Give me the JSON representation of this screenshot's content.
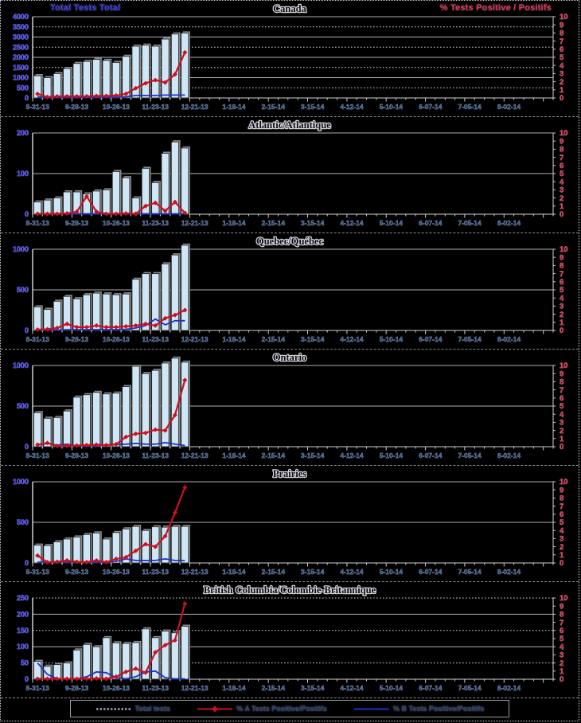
{
  "page": {
    "background": "#000000",
    "border_color": "#cfcfcf"
  },
  "header": {
    "left_axis_title": "Total Tests Total",
    "right_axis_title": "% Tests Positive / Positifs"
  },
  "axis": {
    "x_tick_labels": [
      "8-31-13",
      "9-28-13",
      "10-26-13",
      "11-23-13",
      "12-21-13",
      "1-18-14",
      "2-15-14",
      "3-15-14",
      "4-12-14",
      "5-10-14",
      "6-07-14",
      "7-05-14",
      "8-02-14"
    ],
    "weeks_total": 53,
    "label_every_weeks": 4,
    "right_axis_ticks": [
      0,
      1,
      2,
      3,
      4,
      5,
      6,
      7,
      8,
      9,
      10
    ],
    "right_axis_max": 10
  },
  "colors": {
    "bar_fill": "#cfe6f6",
    "bar_stroke": "#262626",
    "bar_shadow": "#8c8c8c",
    "line_a": "#cc1020",
    "line_b": "#2030cc",
    "grid_solid": "#b0b0b0",
    "grid_dotted": "#d8d8d8",
    "axis_line": "#cfcfcf",
    "left_label": "#3a3af0",
    "right_label": "#e03050",
    "x_label": "#3f5f92",
    "title_fill": "#0d0d20",
    "title_halo": "#d8d8d8",
    "legend_text": "#2a3f77",
    "legend_dash": "#9aa4c0"
  },
  "legend": {
    "items": [
      {
        "label": "Total tests",
        "swatch": "bar-dashed"
      },
      {
        "label": "% A Tests Positive/Positifs",
        "swatch": "line-diamond"
      },
      {
        "label": "% B Tests Positive/Positifs",
        "swatch": "line"
      }
    ]
  },
  "chart_data": [
    {
      "id": "canada",
      "type": "bar",
      "title": "Canada",
      "left_axis": {
        "max": 4000,
        "ticks": [
          0,
          500,
          1000,
          1500,
          2000,
          2500,
          3000,
          3500,
          4000
        ],
        "alt_dotted": true
      },
      "right_axis": {
        "max": 10
      },
      "weeks": [
        "8-31-13",
        "9-07-13",
        "9-14-13",
        "9-21-13",
        "9-28-13",
        "10-05-13",
        "10-12-13",
        "10-19-13",
        "10-26-13",
        "11-02-13",
        "11-09-13",
        "11-16-13",
        "11-23-13",
        "11-30-13",
        "12-07-13",
        "12-14-13"
      ],
      "total_tests": [
        1100,
        1000,
        1200,
        1450,
        1700,
        1800,
        1900,
        1850,
        1750,
        2050,
        2550,
        2600,
        2550,
        2900,
        3150,
        3200
      ],
      "pct_a_positive": [
        0.5,
        0.12,
        0.2,
        0.2,
        0.2,
        0.2,
        0.25,
        0.25,
        0.3,
        0.5,
        1.2,
        1.8,
        2.2,
        1.9,
        2.9,
        5.6
      ],
      "pct_b_positive": [
        0.15,
        0.08,
        0.08,
        0.08,
        0.08,
        0.08,
        0.1,
        0.1,
        0.1,
        0.15,
        0.3,
        0.3,
        0.3,
        0.35,
        0.35,
        0.35
      ]
    },
    {
      "id": "atlantic",
      "type": "bar",
      "title": "Atlantic/Atlantique",
      "left_axis": {
        "max": 200,
        "ticks": [
          0,
          100,
          200
        ],
        "alt_dotted": false
      },
      "right_axis": {
        "max": 10
      },
      "weeks": [
        "8-31-13",
        "9-07-13",
        "9-14-13",
        "9-21-13",
        "9-28-13",
        "10-05-13",
        "10-12-13",
        "10-19-13",
        "10-26-13",
        "11-02-13",
        "11-09-13",
        "11-16-13",
        "11-23-13",
        "11-30-13",
        "12-07-13",
        "12-14-13"
      ],
      "total_tests": [
        30,
        35,
        40,
        55,
        55,
        50,
        57,
        60,
        105,
        90,
        40,
        113,
        78,
        150,
        178,
        163
      ],
      "pct_a_positive": [
        0.05,
        0.05,
        0.05,
        0.1,
        0.3,
        2.2,
        0.3,
        0.05,
        0.05,
        0.1,
        0.05,
        1.0,
        1.4,
        0.4,
        1.5,
        0.15
      ],
      "pct_b_positive": [
        0.05,
        0.05,
        0.05,
        0.05,
        0.05,
        0.05,
        0.05,
        0.05,
        0.05,
        0.05,
        0.05,
        0.05,
        0.05,
        0.05,
        0.05,
        0.05
      ]
    },
    {
      "id": "quebec",
      "type": "bar",
      "title": "Quebec/Québec",
      "left_axis": {
        "max": 1000,
        "ticks": [
          0,
          500,
          1000
        ],
        "alt_dotted": false
      },
      "right_axis": {
        "max": 10
      },
      "weeks": [
        "8-31-13",
        "9-07-13",
        "9-14-13",
        "9-21-13",
        "9-28-13",
        "10-05-13",
        "10-12-13",
        "10-19-13",
        "10-26-13",
        "11-02-13",
        "11-09-13",
        "11-16-13",
        "11-23-13",
        "11-30-13",
        "12-07-13",
        "12-14-13"
      ],
      "total_tests": [
        290,
        260,
        360,
        420,
        390,
        440,
        460,
        450,
        440,
        450,
        630,
        700,
        700,
        820,
        930,
        1050
      ],
      "pct_a_positive": [
        0.1,
        0.15,
        0.3,
        0.8,
        0.4,
        0.4,
        0.6,
        0.4,
        0.4,
        0.5,
        0.6,
        0.8,
        0.6,
        1.5,
        1.9,
        2.5
      ],
      "pct_b_positive": [
        0.05,
        0.05,
        0.05,
        0.1,
        0.1,
        0.1,
        0.1,
        0.1,
        0.1,
        0.15,
        0.3,
        0.6,
        1.4,
        0.7,
        1.2,
        1.2
      ]
    },
    {
      "id": "ontario",
      "type": "bar",
      "title": "Ontario",
      "left_axis": {
        "max": 1000,
        "ticks": [
          0,
          500,
          1000
        ],
        "alt_dotted": false
      },
      "right_axis": {
        "max": 10
      },
      "weeks": [
        "8-31-13",
        "9-07-13",
        "9-14-13",
        "9-21-13",
        "9-28-13",
        "10-05-13",
        "10-12-13",
        "10-19-13",
        "10-26-13",
        "11-02-13",
        "11-09-13",
        "11-16-13",
        "11-23-13",
        "11-30-13",
        "12-07-13",
        "12-14-13"
      ],
      "total_tests": [
        420,
        350,
        360,
        440,
        610,
        640,
        670,
        650,
        660,
        740,
        990,
        900,
        940,
        1030,
        1090,
        1040
      ],
      "pct_a_positive": [
        0.25,
        0.45,
        0.1,
        0.1,
        0.15,
        0.2,
        0.25,
        0.2,
        0.3,
        1.2,
        1.6,
        1.7,
        2.1,
        2.0,
        3.9,
        8.2
      ],
      "pct_b_positive": [
        0.2,
        0.4,
        0.2,
        0.3,
        0.1,
        0.1,
        0.15,
        0.2,
        0.25,
        0.3,
        0.4,
        0.3,
        0.3,
        0.5,
        0.3,
        0.15
      ]
    },
    {
      "id": "prairies",
      "type": "bar",
      "title": "Prairies",
      "left_axis": {
        "max": 1000,
        "ticks": [
          0,
          500,
          1000
        ],
        "alt_dotted": false
      },
      "right_axis": {
        "max": 10
      },
      "weeks": [
        "8-31-13",
        "9-07-13",
        "9-14-13",
        "9-21-13",
        "9-28-13",
        "10-05-13",
        "10-12-13",
        "10-19-13",
        "10-26-13",
        "11-02-13",
        "11-09-13",
        "11-16-13",
        "11-23-13",
        "11-30-13",
        "12-07-13",
        "12-14-13"
      ],
      "total_tests": [
        220,
        215,
        260,
        295,
        320,
        350,
        370,
        295,
        375,
        420,
        450,
        400,
        445,
        440,
        450,
        450
      ],
      "pct_a_positive": [
        0.9,
        0.1,
        0.15,
        0.3,
        0.15,
        0.1,
        0.3,
        0.1,
        0.5,
        0.7,
        1.5,
        2.3,
        2.0,
        3.3,
        6.2,
        9.3
      ],
      "pct_b_positive": [
        0.1,
        0.1,
        0.1,
        0.15,
        0.1,
        0.1,
        0.1,
        0.1,
        0.2,
        0.5,
        0.3,
        0.3,
        0.3,
        0.5,
        0.3,
        0.3
      ]
    },
    {
      "id": "bc",
      "type": "bar",
      "title": "British Columbia/Colombie-Britannique",
      "left_axis": {
        "max": 250,
        "ticks": [
          0,
          50,
          100,
          150,
          200,
          250
        ],
        "alt_dotted": true
      },
      "right_axis": {
        "max": 10
      },
      "weeks": [
        "8-31-13",
        "9-07-13",
        "9-14-13",
        "9-21-13",
        "9-28-13",
        "10-05-13",
        "10-12-13",
        "10-19-13",
        "10-26-13",
        "11-02-13",
        "11-09-13",
        "11-16-13",
        "11-23-13",
        "11-30-13",
        "12-07-13",
        "12-14-13"
      ],
      "total_tests": [
        55,
        40,
        45,
        50,
        90,
        107,
        100,
        128,
        112,
        110,
        113,
        155,
        128,
        148,
        143,
        163
      ],
      "pct_a_positive": [
        0.05,
        0.05,
        0.05,
        0.05,
        0.05,
        0.05,
        0.1,
        0.05,
        0.3,
        0.9,
        1.3,
        0.8,
        3.3,
        4.2,
        4.8,
        9.3
      ],
      "pct_b_positive": [
        2.0,
        0.6,
        0.05,
        0.05,
        0.05,
        0.3,
        0.9,
        0.8,
        0.2,
        0.05,
        0.3,
        0.9,
        1.0,
        0.2,
        0.05,
        0.05
      ]
    }
  ]
}
